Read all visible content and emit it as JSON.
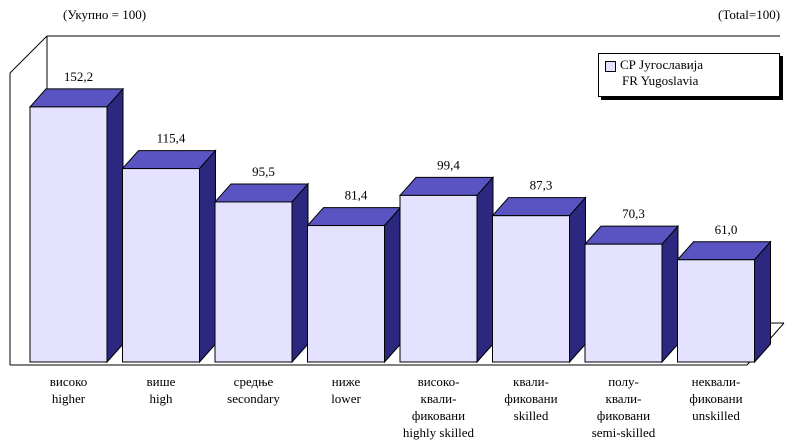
{
  "notes": {
    "left": "(Укупно = 100)",
    "right": "(Total=100)"
  },
  "legend": {
    "line1": "СР Југославија",
    "line2": "FR Yugoslavia"
  },
  "chart_data": {
    "type": "bar",
    "categories": [
      [
        "високо",
        "higher"
      ],
      [
        "више",
        "high"
      ],
      [
        "средње",
        "secondary"
      ],
      [
        "ниже",
        "lower"
      ],
      [
        "високо-",
        "квали-",
        "фиковани",
        "highly skilled"
      ],
      [
        "квали-",
        "фиковани",
        "skilled"
      ],
      [
        "полу-",
        "квали-",
        "фиковани",
        "semi-skilled"
      ],
      [
        "неквали-",
        "фиковани",
        "unskilled"
      ]
    ],
    "values": [
      152.2,
      115.4,
      95.5,
      81.4,
      99.4,
      87.3,
      70.3,
      61.0
    ],
    "value_labels": [
      "152,2",
      "115,4",
      "95,5",
      "81,4",
      "99,4",
      "87,3",
      "70,3",
      "61,0"
    ],
    "series": [
      {
        "name": "СР Југославија / FR Yugoslavia",
        "values": [
          152.2,
          115.4,
          95.5,
          81.4,
          99.4,
          87.3,
          70.3,
          61.0
        ]
      }
    ],
    "colors": {
      "front": "#e4e2ff",
      "top": "#5a54c2",
      "side": "#2c2880"
    },
    "grid": false,
    "legend_position": "top-right"
  }
}
